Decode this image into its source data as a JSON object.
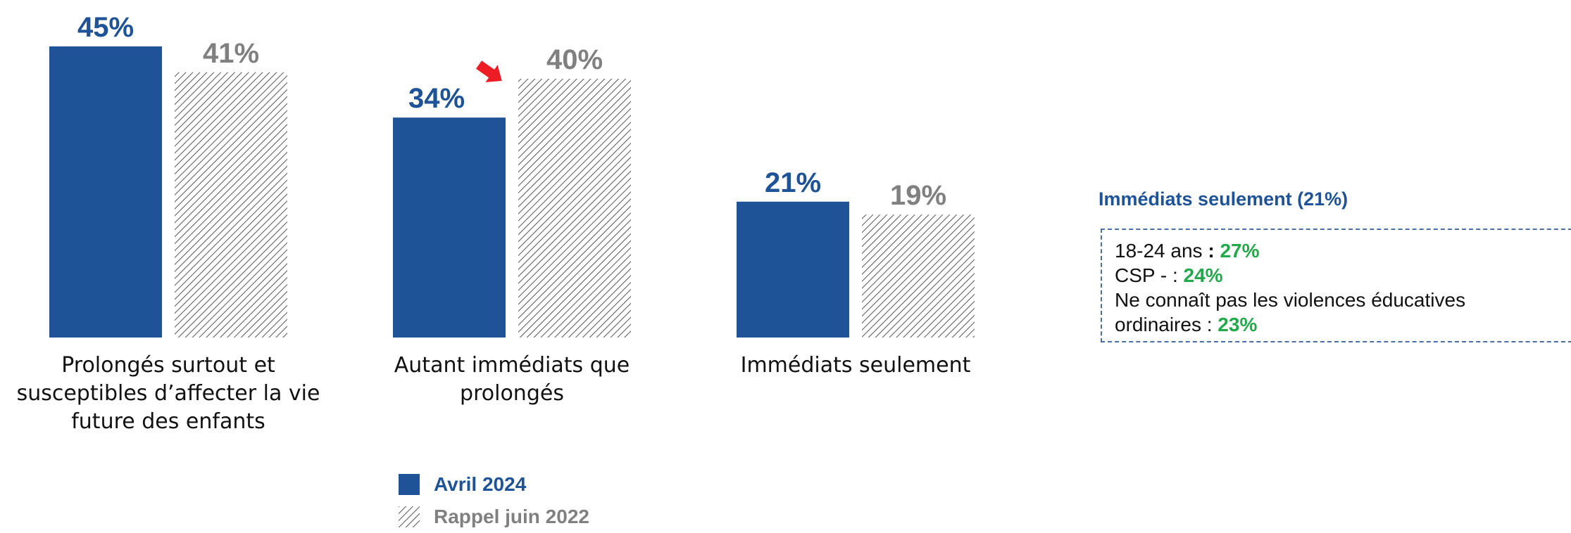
{
  "chart_data": {
    "type": "bar",
    "categories": [
      "Prolongés surtout et susceptibles d’affecter la vie future des enfants",
      "Autant immédiats que prolongés",
      "Immédiats seulement"
    ],
    "category_lines": [
      [
        "Prolongés surtout et",
        "susceptibles d’affecter la vie",
        "future des enfants"
      ],
      [
        "Autant immédiats que",
        "prolongés"
      ],
      [
        "Immédiats seulement"
      ]
    ],
    "series": [
      {
        "name": "Avril 2024",
        "values": [
          45,
          34,
          21
        ],
        "labels": [
          "45%",
          "34%",
          "21%"
        ],
        "color": "#1e5397"
      },
      {
        "name": "Rappel juin 2022",
        "values": [
          41,
          40,
          19
        ],
        "labels": [
          "41%",
          "40%",
          "19%"
        ],
        "color": "#808080"
      }
    ],
    "ylim": [
      0,
      45
    ],
    "grid": false,
    "legend": "bottom-center",
    "annotations": [
      {
        "type": "arrow",
        "category_index": 1,
        "color": "#ee1c25"
      }
    ]
  },
  "callout": {
    "title": "Immédiats seulement (21%)",
    "lines": [
      {
        "label": "18-24 ans",
        "sep": " : ",
        "value": "27%"
      },
      {
        "label": "CSP -",
        "sep": " : ",
        "value": "24%"
      },
      {
        "label": "Ne connaît pas les violences éducatives",
        "sep": "",
        "value": ""
      },
      {
        "label": "ordinaires",
        "sep": " : ",
        "value": "23%"
      }
    ]
  }
}
